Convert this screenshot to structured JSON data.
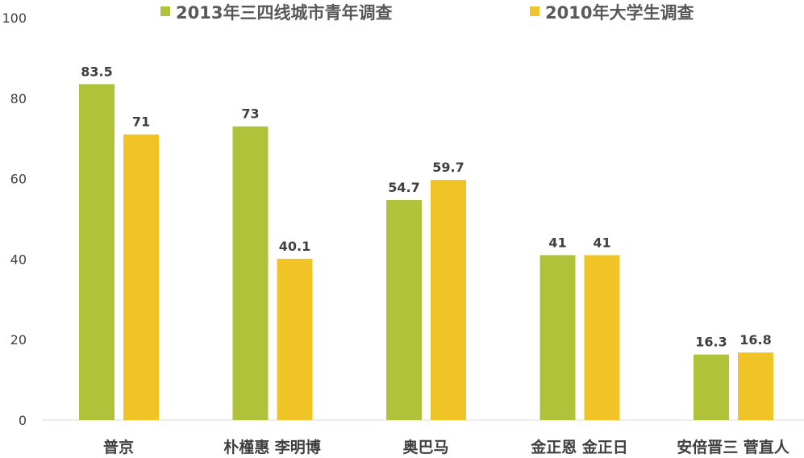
{
  "chart_data": {
    "type": "bar",
    "title": "",
    "xlabel": "",
    "ylabel": "",
    "ylim": [
      0,
      100
    ],
    "yticks": [
      0,
      20,
      40,
      60,
      80,
      100
    ],
    "grid": false,
    "legend_position": "top",
    "categories": [
      "普京",
      "朴槿惠  李明博",
      "奥巴马",
      "金正恩 金正日",
      "安倍晋三  菅直人"
    ],
    "series": [
      {
        "name": "2013年三四线城市青年调查",
        "color": "#b0c23a",
        "values": [
          83.5,
          73,
          54.7,
          41,
          16.3
        ]
      },
      {
        "name": "2010年大学生调查",
        "color": "#f0c427",
        "values": [
          71,
          40.1,
          59.7,
          41,
          16.8
        ]
      }
    ]
  }
}
